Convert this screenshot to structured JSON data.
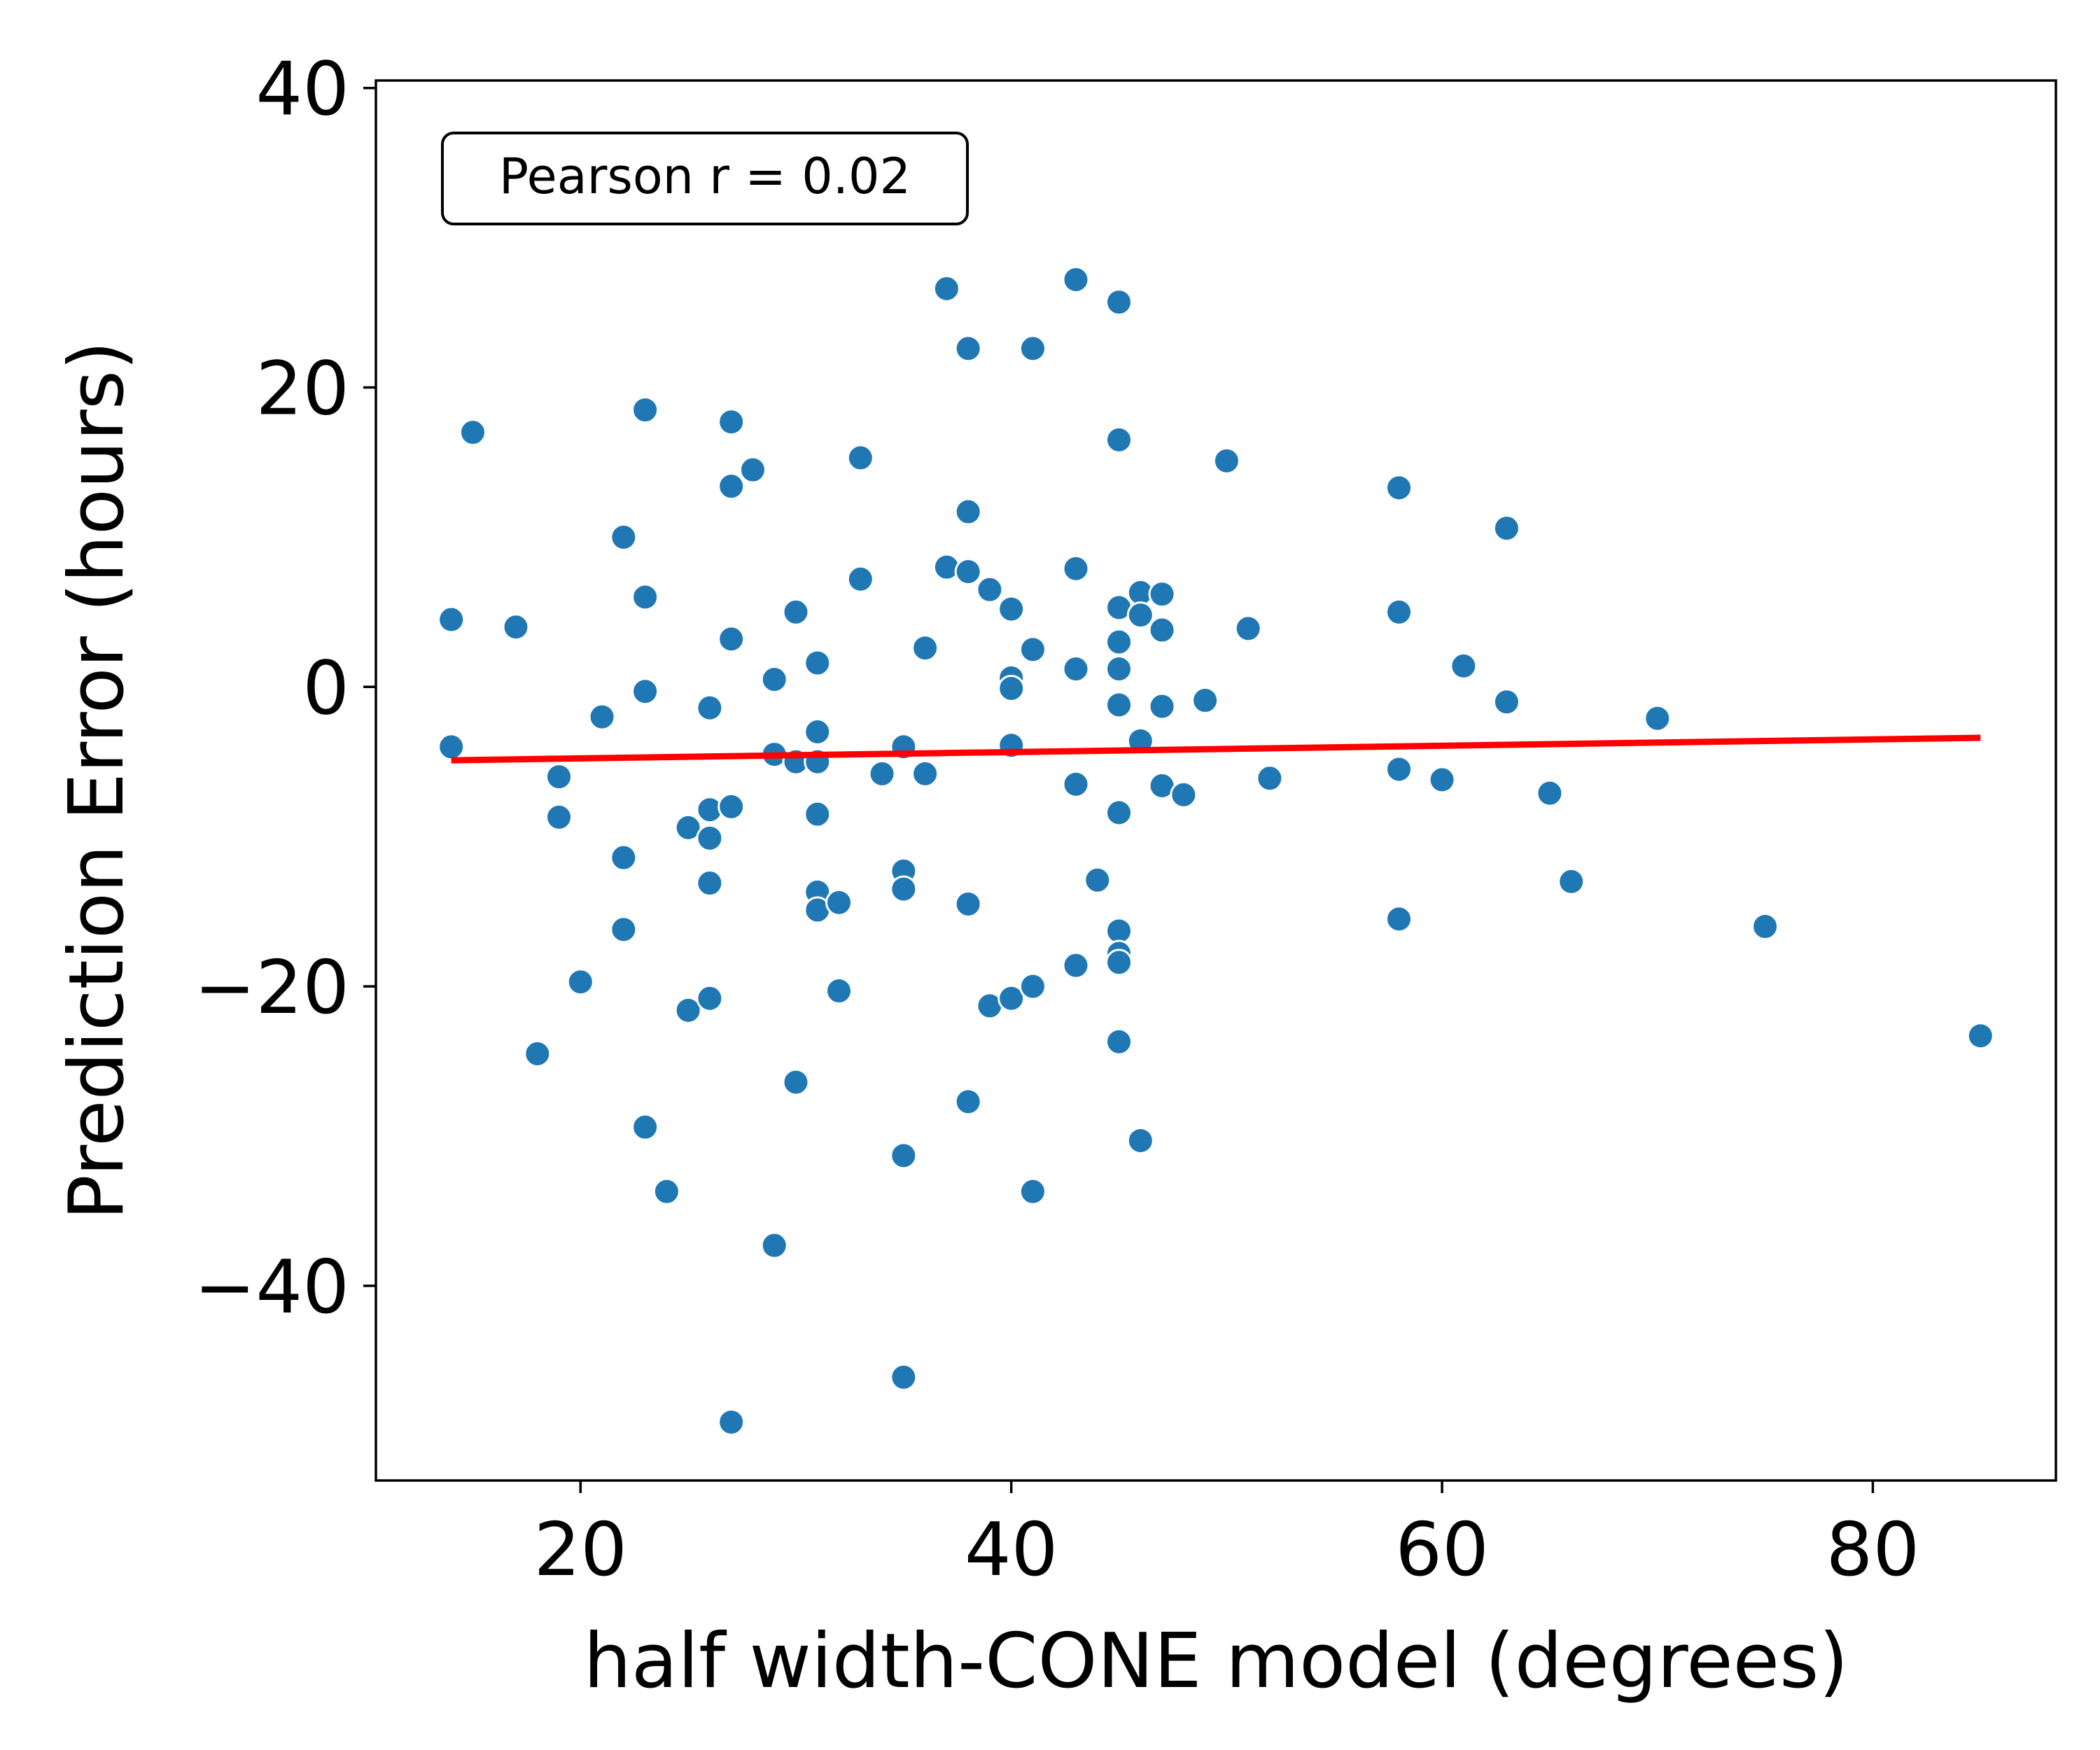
{
  "chart_data": {
    "type": "scatter",
    "title": "",
    "xlabel": "half width-CONE model (degrees)",
    "ylabel": "Prediction Error (hours)",
    "xlim": [
      10.5,
      88.5
    ],
    "ylim": [
      -53,
      40.5
    ],
    "xticks": [
      20,
      40,
      60,
      80
    ],
    "yticks": [
      40,
      20,
      0,
      -20,
      -40
    ],
    "ytick_labels": [
      "40",
      "20",
      "0",
      "−20",
      "−40"
    ],
    "xtick_labels": [
      "20",
      "40",
      "60",
      "80"
    ],
    "grid": false,
    "annotation": "Pearson r = 0.02",
    "annotation_position": "top-left",
    "colors": {
      "points": "#1f77b4",
      "point_edge": "#ffffff",
      "fit_line": "#ff0000"
    },
    "fit_line": {
      "x": [
        14,
        85
      ],
      "y": [
        -4.9,
        -3.4
      ]
    },
    "points": [
      {
        "x": 14,
        "y": 4.5
      },
      {
        "x": 14,
        "y": -4.0
      },
      {
        "x": 15,
        "y": 17.0
      },
      {
        "x": 17,
        "y": 4.0
      },
      {
        "x": 18,
        "y": -24.5
      },
      {
        "x": 19,
        "y": -6.0
      },
      {
        "x": 19,
        "y": -8.7
      },
      {
        "x": 20,
        "y": -19.7
      },
      {
        "x": 21,
        "y": -2.0
      },
      {
        "x": 22,
        "y": 10.0
      },
      {
        "x": 22,
        "y": -11.4
      },
      {
        "x": 22,
        "y": -16.2
      },
      {
        "x": 23,
        "y": 18.5
      },
      {
        "x": 23,
        "y": 6.0
      },
      {
        "x": 23,
        "y": -0.3
      },
      {
        "x": 23,
        "y": -29.4
      },
      {
        "x": 24,
        "y": -33.7
      },
      {
        "x": 25,
        "y": -9.4
      },
      {
        "x": 25,
        "y": -21.6
      },
      {
        "x": 26,
        "y": -1.4
      },
      {
        "x": 26,
        "y": -8.2
      },
      {
        "x": 26,
        "y": -10.1
      },
      {
        "x": 26,
        "y": -13.1
      },
      {
        "x": 26,
        "y": -20.8
      },
      {
        "x": 27,
        "y": 17.7
      },
      {
        "x": 27,
        "y": 13.4
      },
      {
        "x": 27,
        "y": 3.2
      },
      {
        "x": 27,
        "y": -8.0
      },
      {
        "x": 27,
        "y": -49.1
      },
      {
        "x": 28,
        "y": 14.5
      },
      {
        "x": 29,
        "y": 0.5
      },
      {
        "x": 29,
        "y": -4.5
      },
      {
        "x": 29,
        "y": -37.3
      },
      {
        "x": 30,
        "y": 5.0
      },
      {
        "x": 30,
        "y": -5.0
      },
      {
        "x": 30,
        "y": -26.4
      },
      {
        "x": 31,
        "y": 1.6
      },
      {
        "x": 31,
        "y": -3.0
      },
      {
        "x": 31,
        "y": -5.0
      },
      {
        "x": 31,
        "y": -8.5
      },
      {
        "x": 31,
        "y": -13.7
      },
      {
        "x": 31,
        "y": -14.9
      },
      {
        "x": 32,
        "y": -14.4
      },
      {
        "x": 32,
        "y": -20.3
      },
      {
        "x": 33,
        "y": 15.3
      },
      {
        "x": 33,
        "y": 7.2
      },
      {
        "x": 34,
        "y": -5.8
      },
      {
        "x": 35,
        "y": -4.0
      },
      {
        "x": 35,
        "y": -12.3
      },
      {
        "x": 35,
        "y": -13.5
      },
      {
        "x": 35,
        "y": -31.3
      },
      {
        "x": 35,
        "y": -46.1
      },
      {
        "x": 36,
        "y": 2.6
      },
      {
        "x": 36,
        "y": -5.8
      },
      {
        "x": 37,
        "y": 26.6
      },
      {
        "x": 37,
        "y": 8.0
      },
      {
        "x": 38,
        "y": 22.6
      },
      {
        "x": 38,
        "y": 11.7
      },
      {
        "x": 38,
        "y": 7.7
      },
      {
        "x": 38,
        "y": -14.5
      },
      {
        "x": 38,
        "y": -27.7
      },
      {
        "x": 39,
        "y": 6.5
      },
      {
        "x": 39,
        "y": -21.3
      },
      {
        "x": 40,
        "y": 5.2
      },
      {
        "x": 40,
        "y": 0.6
      },
      {
        "x": 40,
        "y": -0.1
      },
      {
        "x": 40,
        "y": -3.9
      },
      {
        "x": 40,
        "y": -20.8
      },
      {
        "x": 41,
        "y": 22.6
      },
      {
        "x": 41,
        "y": 2.5
      },
      {
        "x": 41,
        "y": -20.0
      },
      {
        "x": 41,
        "y": -33.7
      },
      {
        "x": 43,
        "y": 27.2
      },
      {
        "x": 43,
        "y": 7.9
      },
      {
        "x": 43,
        "y": 1.2
      },
      {
        "x": 43,
        "y": -6.5
      },
      {
        "x": 43,
        "y": -18.6
      },
      {
        "x": 44,
        "y": -12.9
      },
      {
        "x": 45,
        "y": 25.7
      },
      {
        "x": 45,
        "y": 16.5
      },
      {
        "x": 45,
        "y": 5.3
      },
      {
        "x": 45,
        "y": 3.0
      },
      {
        "x": 45,
        "y": 1.2
      },
      {
        "x": 45,
        "y": -1.2
      },
      {
        "x": 45,
        "y": -8.4
      },
      {
        "x": 45,
        "y": -16.3
      },
      {
        "x": 45,
        "y": -17.8
      },
      {
        "x": 45,
        "y": -18.4
      },
      {
        "x": 45,
        "y": -23.7
      },
      {
        "x": 46,
        "y": 6.3
      },
      {
        "x": 46,
        "y": 4.8
      },
      {
        "x": 46,
        "y": -3.6
      },
      {
        "x": 46,
        "y": -30.3
      },
      {
        "x": 47,
        "y": 6.2
      },
      {
        "x": 47,
        "y": 3.8
      },
      {
        "x": 47,
        "y": -1.3
      },
      {
        "x": 47,
        "y": -6.6
      },
      {
        "x": 48,
        "y": -7.2
      },
      {
        "x": 49,
        "y": -0.9
      },
      {
        "x": 50,
        "y": 15.1
      },
      {
        "x": 51,
        "y": 3.9
      },
      {
        "x": 52,
        "y": -6.1
      },
      {
        "x": 58,
        "y": 13.3
      },
      {
        "x": 58,
        "y": 5.0
      },
      {
        "x": 58,
        "y": -5.5
      },
      {
        "x": 58,
        "y": -15.5
      },
      {
        "x": 60,
        "y": -6.2
      },
      {
        "x": 61,
        "y": 1.4
      },
      {
        "x": 63,
        "y": 10.6
      },
      {
        "x": 63,
        "y": -1.0
      },
      {
        "x": 65,
        "y": -7.1
      },
      {
        "x": 66,
        "y": -13.0
      },
      {
        "x": 70,
        "y": -2.1
      },
      {
        "x": 75,
        "y": -16.0
      },
      {
        "x": 85,
        "y": -23.3
      }
    ]
  }
}
